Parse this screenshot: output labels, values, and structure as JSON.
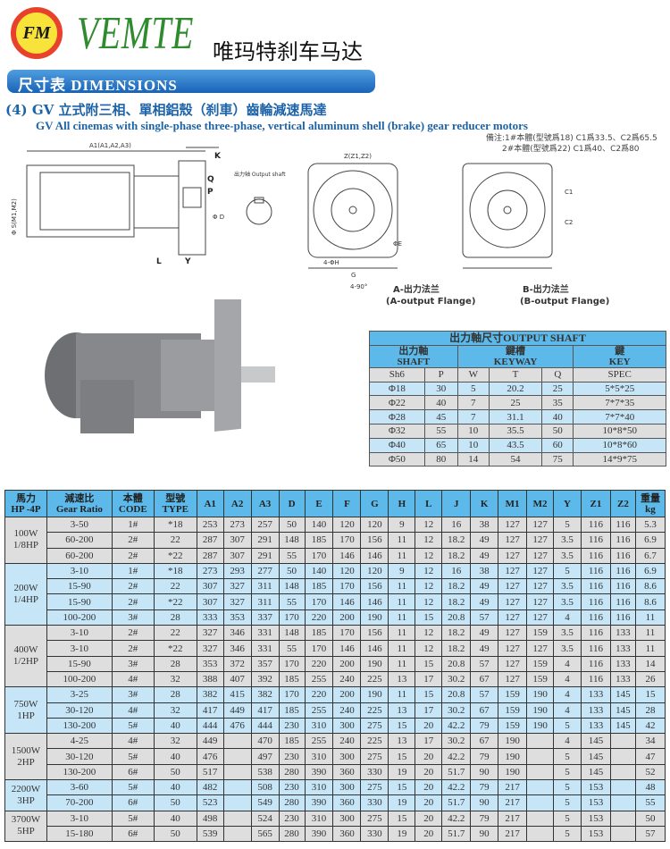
{
  "header": {
    "logo_text": "FM",
    "brand": "VEMTE",
    "brand_cn": "唯玛特刹车马达"
  },
  "banner": "尺寸表 DIMENSIONS",
  "title_cn": "(4) GV 立式附三相、單相鋁殼（刹車）齒輪減速馬達",
  "title_en": "GV All  cinemas with single-phase three-phase, vertical aluminum shell (brake) gear reducer motors",
  "notes": [
    "備注:1#本體(型號爲18) C1爲33.5、C2爲65.5",
    "2#本體(型號爲22) C1爲40、C2爲80"
  ],
  "drawing_labels": {
    "a1": "A1(A1,A2,A3)",
    "k": "K",
    "q": "Q",
    "p": "P",
    "s": "Φ S(M1,M2)",
    "y": "Y",
    "l": "L",
    "d": "Φ D",
    "output_shaft": "出力轴 Output shaft",
    "z": "Z(Z1,Z2)",
    "e": "ΦE",
    "h": "4-ΦH",
    "g": "G",
    "angle": "4-90°",
    "c1": "C1",
    "c2": "C2",
    "flange_a": "A-出力法兰",
    "flange_a_en": "(A-output Flange)",
    "flange_b": "B-出力法兰",
    "flange_b_en": "(B-output Flange)"
  },
  "shaft_table": {
    "title": "出力軸尺寸OUTPUT SHAFT",
    "groups": [
      {
        "cn": "出力軸",
        "en": "SHAFT"
      },
      {
        "cn": "鍵槽",
        "en": "KEYWAY"
      },
      {
        "cn": "鍵",
        "en": "KEY"
      }
    ],
    "columns": [
      "Sh6",
      "P",
      "W",
      "T",
      "Q",
      "SPEC"
    ],
    "rows": [
      [
        "Φ18",
        "30",
        "5",
        "20.2",
        "25",
        "5*5*25"
      ],
      [
        "Φ22",
        "40",
        "7",
        "25",
        "35",
        "7*7*35"
      ],
      [
        "Φ28",
        "45",
        "7",
        "31.1",
        "40",
        "7*7*40"
      ],
      [
        "Φ32",
        "55",
        "10",
        "35.5",
        "50",
        "10*8*50"
      ],
      [
        "Φ40",
        "65",
        "10",
        "43.5",
        "60",
        "10*8*60"
      ],
      [
        "Φ50",
        "80",
        "14",
        "54",
        "75",
        "14*9*75"
      ]
    ]
  },
  "dim_table": {
    "headers": [
      [
        "馬力",
        "HP -4P"
      ],
      [
        "減速比",
        "Gear Ratio"
      ],
      [
        "本體",
        "CODE"
      ],
      [
        "型號",
        "TYPE"
      ],
      [
        "A1"
      ],
      [
        "A2"
      ],
      [
        "A3"
      ],
      [
        "D"
      ],
      [
        "E"
      ],
      [
        "F"
      ],
      [
        "G"
      ],
      [
        "H"
      ],
      [
        "L"
      ],
      [
        "J"
      ],
      [
        "K"
      ],
      [
        "M1"
      ],
      [
        "M2"
      ],
      [
        "Y"
      ],
      [
        "Z1"
      ],
      [
        "Z2"
      ],
      [
        "重量",
        "kg"
      ]
    ],
    "groups": [
      {
        "power": [
          "100W",
          "1/8HP"
        ],
        "rows": [
          [
            "3-50",
            "1#",
            "*18",
            "253",
            "273",
            "257",
            "50",
            "140",
            "120",
            "120",
            "9",
            "12",
            "16",
            "38",
            "127",
            "127",
            "5",
            "116",
            "116",
            "5.3"
          ],
          [
            "60-200",
            "2#",
            "22",
            "287",
            "307",
            "291",
            "148",
            "185",
            "170",
            "156",
            "11",
            "12",
            "18.2",
            "49",
            "127",
            "127",
            "3.5",
            "116",
            "116",
            "6.9"
          ],
          [
            "60-200",
            "2#",
            "*22",
            "287",
            "307",
            "291",
            "55",
            "170",
            "146",
            "146",
            "11",
            "12",
            "18.2",
            "49",
            "127",
            "127",
            "3.5",
            "116",
            "116",
            "6.7"
          ]
        ]
      },
      {
        "power": [
          "200W",
          "1/4HP"
        ],
        "rows": [
          [
            "3-10",
            "1#",
            "*18",
            "273",
            "293",
            "277",
            "50",
            "140",
            "120",
            "120",
            "9",
            "12",
            "16",
            "38",
            "127",
            "127",
            "5",
            "116",
            "116",
            "6.9"
          ],
          [
            "15-90",
            "2#",
            "22",
            "307",
            "327",
            "311",
            "148",
            "185",
            "170",
            "156",
            "11",
            "12",
            "18.2",
            "49",
            "127",
            "127",
            "3.5",
            "116",
            "116",
            "8.6"
          ],
          [
            "15-90",
            "2#",
            "*22",
            "307",
            "327",
            "311",
            "55",
            "170",
            "146",
            "146",
            "11",
            "12",
            "18.2",
            "49",
            "127",
            "127",
            "3.5",
            "116",
            "116",
            "8.6"
          ],
          [
            "100-200",
            "3#",
            "28",
            "333",
            "353",
            "337",
            "170",
            "220",
            "200",
            "190",
            "11",
            "15",
            "20.8",
            "57",
            "127",
            "127",
            "4",
            "116",
            "116",
            "11"
          ]
        ]
      },
      {
        "power": [
          "400W",
          "1/2HP"
        ],
        "rows": [
          [
            "3-10",
            "2#",
            "22",
            "327",
            "346",
            "331",
            "148",
            "185",
            "170",
            "156",
            "11",
            "12",
            "18.2",
            "49",
            "127",
            "159",
            "3.5",
            "116",
            "133",
            "11"
          ],
          [
            "3-10",
            "2#",
            "*22",
            "327",
            "346",
            "331",
            "55",
            "170",
            "146",
            "146",
            "11",
            "12",
            "18.2",
            "49",
            "127",
            "127",
            "3.5",
            "116",
            "133",
            "11"
          ],
          [
            "15-90",
            "3#",
            "28",
            "353",
            "372",
            "357",
            "170",
            "220",
            "200",
            "190",
            "11",
            "15",
            "20.8",
            "57",
            "127",
            "159",
            "4",
            "116",
            "133",
            "14"
          ],
          [
            "100-200",
            "4#",
            "32",
            "388",
            "407",
            "392",
            "185",
            "255",
            "240",
            "225",
            "13",
            "17",
            "30.2",
            "67",
            "127",
            "159",
            "4",
            "116",
            "133",
            "26"
          ]
        ]
      },
      {
        "power": [
          "750W",
          "1HP"
        ],
        "rows": [
          [
            "3-25",
            "3#",
            "28",
            "382",
            "415",
            "382",
            "170",
            "220",
            "200",
            "190",
            "11",
            "15",
            "20.8",
            "57",
            "159",
            "190",
            "4",
            "133",
            "145",
            "15"
          ],
          [
            "30-120",
            "4#",
            "32",
            "417",
            "449",
            "417",
            "185",
            "255",
            "240",
            "225",
            "13",
            "17",
            "30.2",
            "67",
            "159",
            "190",
            "4",
            "133",
            "145",
            "28"
          ],
          [
            "130-200",
            "5#",
            "40",
            "444",
            "476",
            "444",
            "230",
            "310",
            "300",
            "275",
            "15",
            "20",
            "42.2",
            "79",
            "159",
            "190",
            "5",
            "133",
            "145",
            "42"
          ]
        ]
      },
      {
        "power": [
          "1500W",
          "2HP"
        ],
        "rows": [
          [
            "4-25",
            "4#",
            "32",
            "449",
            "",
            "470",
            "185",
            "255",
            "240",
            "225",
            "13",
            "17",
            "30.2",
            "67",
            "190",
            "",
            "4",
            "145",
            "",
            "34"
          ],
          [
            "30-120",
            "5#",
            "40",
            "476",
            "",
            "497",
            "230",
            "310",
            "300",
            "275",
            "15",
            "20",
            "42.2",
            "79",
            "190",
            "",
            "5",
            "145",
            "",
            "47"
          ],
          [
            "130-200",
            "6#",
            "50",
            "517",
            "",
            "538",
            "280",
            "390",
            "360",
            "330",
            "19",
            "20",
            "51.7",
            "90",
            "190",
            "",
            "5",
            "145",
            "",
            "52"
          ]
        ]
      },
      {
        "power": [
          "2200W",
          "3HP"
        ],
        "rows": [
          [
            "3-60",
            "5#",
            "40",
            "482",
            "",
            "508",
            "230",
            "310",
            "300",
            "275",
            "15",
            "20",
            "42.2",
            "79",
            "217",
            "",
            "5",
            "153",
            "",
            "48"
          ],
          [
            "70-200",
            "6#",
            "50",
            "523",
            "",
            "549",
            "280",
            "390",
            "360",
            "330",
            "19",
            "20",
            "51.7",
            "90",
            "217",
            "",
            "5",
            "153",
            "",
            "55"
          ]
        ]
      },
      {
        "power": [
          "3700W",
          "5HP"
        ],
        "rows": [
          [
            "3-10",
            "5#",
            "40",
            "498",
            "",
            "524",
            "230",
            "310",
            "300",
            "275",
            "15",
            "20",
            "42.2",
            "79",
            "217",
            "",
            "5",
            "153",
            "",
            "50"
          ],
          [
            "15-180",
            "6#",
            "50",
            "539",
            "",
            "565",
            "280",
            "390",
            "360",
            "330",
            "19",
            "20",
            "51.7",
            "90",
            "217",
            "",
            "5",
            "153",
            "",
            "57"
          ]
        ]
      }
    ]
  }
}
